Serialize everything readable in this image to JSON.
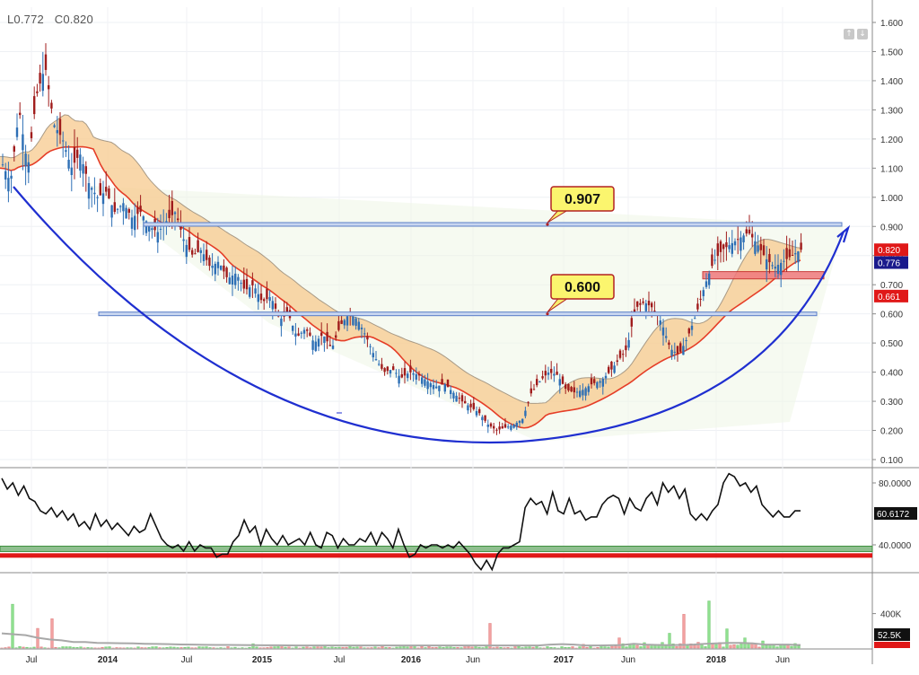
{
  "header": {
    "low_label": "L0.772",
    "close_label": "C0.820"
  },
  "icons": {
    "scroll_up": "arrow-up-icon",
    "scroll_down": "arrow-down-icon"
  },
  "colors": {
    "up_candle": "#2d6fb5",
    "down_candle": "#a01c1c",
    "fast_ma": "#e53d27",
    "band_fill": "#f7c98e",
    "trend_arc": "#1f2fd0",
    "level_line": "#5b7fc7",
    "rsi_line": "#111111",
    "rsi_green": "#3f8f3f",
    "rsi_red": "#e01818",
    "vol_up": "#8fe08f",
    "vol_down": "#f2a0a0",
    "vol_ma": "#a8a8a8"
  },
  "chart_data": [
    {
      "type": "candlestick",
      "title": "",
      "y_axis": {
        "ticks": [
          "1.600",
          "1.500",
          "1.400",
          "1.300",
          "1.200",
          "1.100",
          "1.000",
          "0.900",
          "0.800",
          "0.700",
          "0.600",
          "0.500",
          "0.400",
          "0.300",
          "0.200",
          "0.100"
        ],
        "range": [
          0.1,
          1.6
        ]
      },
      "x_axis": {
        "ticks": [
          "Jul",
          "2014",
          "Jul",
          "2015",
          "Jul",
          "2016",
          "Jun",
          "2017",
          "Jun",
          "2018",
          "Jun"
        ]
      },
      "close_path": [
        1.12,
        1.05,
        1.3,
        1.1,
        1.35,
        1.45,
        1.25,
        1.2,
        1.1,
        1.15,
        1.05,
        1.0,
        1.02,
        0.95,
        0.98,
        0.93,
        0.95,
        0.9,
        0.88,
        0.92,
        0.95,
        0.85,
        0.8,
        0.82,
        0.76,
        0.78,
        0.72,
        0.74,
        0.68,
        0.7,
        0.64,
        0.66,
        0.58,
        0.6,
        0.52,
        0.55,
        0.5,
        0.53,
        0.48,
        0.56,
        0.6,
        0.58,
        0.52,
        0.45,
        0.4,
        0.41,
        0.38,
        0.4,
        0.39,
        0.37,
        0.35,
        0.36,
        0.33,
        0.3,
        0.28,
        0.26,
        0.22,
        0.2,
        0.21,
        0.22,
        0.24,
        0.33,
        0.37,
        0.4,
        0.39,
        0.34,
        0.33,
        0.34,
        0.36,
        0.37,
        0.4,
        0.44,
        0.48,
        0.62,
        0.64,
        0.62,
        0.57,
        0.48,
        0.46,
        0.52,
        0.6,
        0.7,
        0.78,
        0.82,
        0.84,
        0.86,
        0.88,
        0.84,
        0.79,
        0.76,
        0.78,
        0.8,
        0.82
      ],
      "levels": [
        {
          "label": "0.907",
          "value": 0.907
        },
        {
          "label": "0.600",
          "value": 0.6
        }
      ],
      "support_zone": [
        0.72,
        0.745
      ],
      "price_tags": [
        {
          "label": "0.820",
          "value": 0.82,
          "color": "#e01818"
        },
        {
          "label": "0.776",
          "value": 0.776,
          "color": "#1a1a8c"
        },
        {
          "label": "0.661",
          "value": 0.661,
          "color": "#e01818"
        }
      ]
    },
    {
      "type": "line",
      "title": "",
      "y_axis": {
        "ticks": [
          "80.0000",
          "40.0000"
        ],
        "range": [
          18,
          88
        ]
      },
      "current_label": "60.6172",
      "values": [
        83,
        76,
        80,
        72,
        78,
        70,
        68,
        62,
        60,
        64,
        58,
        62,
        56,
        60,
        52,
        55,
        50,
        60,
        52,
        56,
        50,
        54,
        50,
        46,
        52,
        48,
        50,
        60,
        52,
        44,
        40,
        38,
        40,
        36,
        42,
        36,
        40,
        38,
        38,
        32,
        34,
        34,
        42,
        46,
        56,
        48,
        52,
        40,
        50,
        44,
        40,
        46,
        40,
        42,
        44,
        40,
        48,
        40,
        38,
        48,
        46,
        38,
        44,
        40,
        40,
        44,
        42,
        48,
        40,
        48,
        44,
        38,
        50,
        40,
        32,
        34,
        40,
        38,
        40,
        40,
        38,
        40,
        38,
        42,
        38,
        34,
        28,
        24,
        30,
        24,
        34,
        38,
        38,
        40,
        42,
        64,
        70,
        66,
        68,
        60,
        74,
        62,
        60,
        70,
        60,
        62,
        56,
        58,
        58,
        66,
        70,
        72,
        70,
        60,
        70,
        64,
        62,
        70,
        74,
        66,
        80,
        74,
        78,
        70,
        76,
        60,
        56,
        60,
        56,
        62,
        66,
        80,
        86,
        84,
        78,
        80,
        74,
        78,
        66,
        62,
        58,
        62,
        58,
        58,
        62,
        62
      ],
      "bands": [
        {
          "value": 38
        },
        {
          "value": 34
        }
      ]
    },
    {
      "type": "bar",
      "title": "",
      "y_axis": {
        "ticks": [
          "400K"
        ],
        "range": [
          0,
          650
        ]
      },
      "current_label": "52.5K",
      "series_ma": [
        170,
        160,
        150,
        120,
        100,
        90,
        70,
        70,
        60,
        58,
        56,
        55,
        50,
        48,
        45,
        42,
        40,
        38,
        37,
        36,
        35,
        34,
        33,
        32,
        31,
        30,
        30,
        30,
        30,
        30,
        30,
        30,
        30,
        30,
        30,
        30,
        30,
        30,
        30,
        30,
        30,
        30,
        30,
        30,
        30,
        30,
        40,
        46,
        40,
        30,
        30,
        32,
        35,
        50,
        40,
        36,
        34,
        36,
        40,
        50,
        55,
        60,
        60,
        55,
        40,
        40,
        40,
        35
      ]
    }
  ]
}
